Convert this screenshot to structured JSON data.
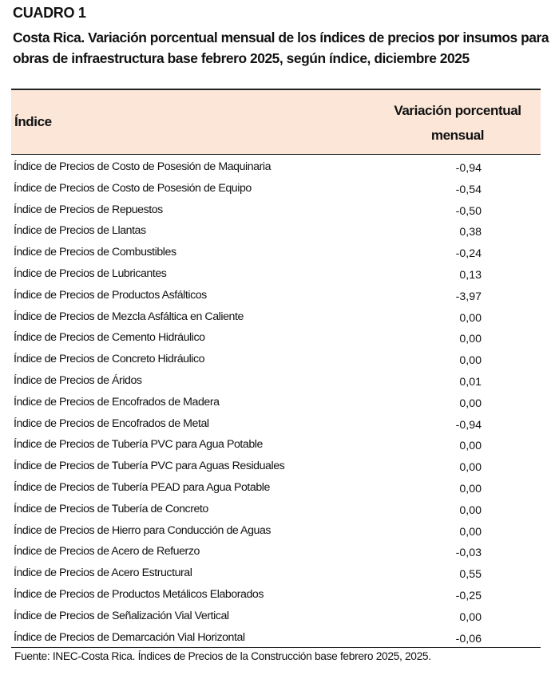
{
  "header": {
    "label": "CUADRO 1",
    "title": "Costa Rica. Variación porcentual mensual de los índices de precios por insumos para obras de infraestructura base febrero 2025, según índice, diciembre 2025"
  },
  "table": {
    "col_index": "Índice",
    "col_variation": "Variación porcentual mensual",
    "header_color": "#fbe6d8",
    "rows": [
      {
        "name": "Índice de Precios de Costo de Posesión de Maquinaria",
        "value": "-0,94"
      },
      {
        "name": "Índice de Precios de Costo de Posesión de Equipo",
        "value": "-0,54"
      },
      {
        "name": "Índice de Precios de Repuestos",
        "value": "-0,50"
      },
      {
        "name": "Índice de Precios de Llantas",
        "value": "0,38"
      },
      {
        "name": "Índice de Precios de Combustibles",
        "value": "-0,24"
      },
      {
        "name": "Índice de Precios de Lubricantes",
        "value": "0,13"
      },
      {
        "name": "Índice de Precios de Productos Asfálticos",
        "value": "-3,97"
      },
      {
        "name": "Índice de Precios de Mezcla Asfáltica en Caliente",
        "value": "0,00"
      },
      {
        "name": "Índice de Precios de Cemento Hidráulico",
        "value": "0,00"
      },
      {
        "name": "Índice de Precios de Concreto Hidráulico",
        "value": "0,00"
      },
      {
        "name": "Índice de Precios de Áridos",
        "value": "0,01"
      },
      {
        "name": "Índice de Precios de Encofrados de Madera",
        "value": "0,00"
      },
      {
        "name": "Índice de Precios de Encofrados de Metal",
        "value": "-0,94"
      },
      {
        "name": "Índice de Precios de Tubería PVC para Agua Potable",
        "value": "0,00"
      },
      {
        "name": "Índice de Precios de Tubería PVC para Aguas Residuales",
        "value": "0,00"
      },
      {
        "name": "Índice de Precios de Tubería PEAD para Agua Potable",
        "value": "0,00"
      },
      {
        "name": "Índice de Precios de Tubería de Concreto",
        "value": "0,00"
      },
      {
        "name": "Índice de Precios de Hierro para Conducción de Aguas",
        "value": "0,00"
      },
      {
        "name": "Índice de Precios de Acero de Refuerzo",
        "value": "-0,03"
      },
      {
        "name": "Índice de Precios de Acero Estructural",
        "value": "0,55"
      },
      {
        "name": "Índice de Precios de Productos Metálicos Elaborados",
        "value": "-0,25"
      },
      {
        "name": "Índice de Precios de Señalización Vial Vertical",
        "value": "0,00"
      },
      {
        "name": "Índice de Precios de Demarcación Vial Horizontal",
        "value": "-0,06"
      }
    ]
  },
  "footer": {
    "source": "Fuente: INEC-Costa Rica. Índices de Precios de la Construcción base febrero 2025, 2025."
  }
}
